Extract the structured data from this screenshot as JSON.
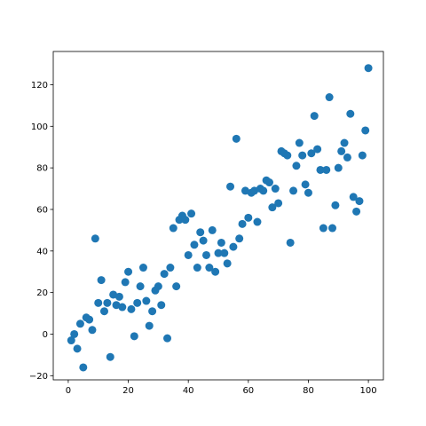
{
  "chart_data": {
    "type": "scatter",
    "title": "",
    "xlabel": "",
    "ylabel": "",
    "xlim": [
      -5,
      105
    ],
    "ylim": [
      -22,
      136
    ],
    "x_ticks": [
      0,
      20,
      40,
      60,
      80,
      100
    ],
    "y_ticks": [
      -20,
      0,
      20,
      40,
      60,
      80,
      100,
      120
    ],
    "x_tick_labels": [
      "0",
      "20",
      "40",
      "60",
      "80",
      "100"
    ],
    "y_tick_labels": [
      "−20",
      "0",
      "20",
      "40",
      "60",
      "80",
      "100",
      "120"
    ],
    "grid": false,
    "legend": "none",
    "marker_color": "#1f77b4",
    "points": [
      [
        1,
        -3
      ],
      [
        2,
        0
      ],
      [
        3,
        -7
      ],
      [
        4,
        5
      ],
      [
        5,
        -16
      ],
      [
        6,
        8
      ],
      [
        7,
        7
      ],
      [
        8,
        2
      ],
      [
        9,
        46
      ],
      [
        10,
        15
      ],
      [
        11,
        26
      ],
      [
        12,
        11
      ],
      [
        13,
        15
      ],
      [
        14,
        -11
      ],
      [
        15,
        19
      ],
      [
        16,
        14
      ],
      [
        17,
        18
      ],
      [
        18,
        13
      ],
      [
        19,
        25
      ],
      [
        20,
        30
      ],
      [
        21,
        12
      ],
      [
        22,
        -1
      ],
      [
        23,
        15
      ],
      [
        24,
        23
      ],
      [
        25,
        32
      ],
      [
        26,
        16
      ],
      [
        27,
        4
      ],
      [
        28,
        11
      ],
      [
        29,
        21
      ],
      [
        30,
        23
      ],
      [
        31,
        14
      ],
      [
        32,
        29
      ],
      [
        33,
        -2
      ],
      [
        34,
        32
      ],
      [
        35,
        51
      ],
      [
        36,
        23
      ],
      [
        37,
        55
      ],
      [
        38,
        57
      ],
      [
        39,
        55
      ],
      [
        40,
        38
      ],
      [
        41,
        58
      ],
      [
        42,
        43
      ],
      [
        43,
        32
      ],
      [
        44,
        49
      ],
      [
        45,
        45
      ],
      [
        46,
        38
      ],
      [
        47,
        32
      ],
      [
        48,
        50
      ],
      [
        49,
        30
      ],
      [
        50,
        39
      ],
      [
        51,
        44
      ],
      [
        52,
        39
      ],
      [
        53,
        34
      ],
      [
        54,
        71
      ],
      [
        55,
        42
      ],
      [
        56,
        94
      ],
      [
        57,
        46
      ],
      [
        58,
        53
      ],
      [
        59,
        69
      ],
      [
        60,
        56
      ],
      [
        61,
        68
      ],
      [
        62,
        69
      ],
      [
        63,
        54
      ],
      [
        64,
        70
      ],
      [
        65,
        69
      ],
      [
        66,
        74
      ],
      [
        67,
        73
      ],
      [
        68,
        61
      ],
      [
        69,
        70
      ],
      [
        70,
        63
      ],
      [
        71,
        88
      ],
      [
        72,
        87
      ],
      [
        73,
        86
      ],
      [
        74,
        44
      ],
      [
        75,
        69
      ],
      [
        76,
        81
      ],
      [
        77,
        92
      ],
      [
        78,
        86
      ],
      [
        79,
        72
      ],
      [
        80,
        68
      ],
      [
        81,
        87
      ],
      [
        82,
        105
      ],
      [
        83,
        89
      ],
      [
        84,
        79
      ],
      [
        85,
        51
      ],
      [
        86,
        79
      ],
      [
        87,
        114
      ],
      [
        88,
        51
      ],
      [
        89,
        62
      ],
      [
        90,
        80
      ],
      [
        91,
        88
      ],
      [
        92,
        92
      ],
      [
        93,
        85
      ],
      [
        94,
        106
      ],
      [
        95,
        66
      ],
      [
        96,
        59
      ],
      [
        97,
        64
      ],
      [
        98,
        86
      ],
      [
        99,
        98
      ],
      [
        100,
        128
      ]
    ]
  }
}
